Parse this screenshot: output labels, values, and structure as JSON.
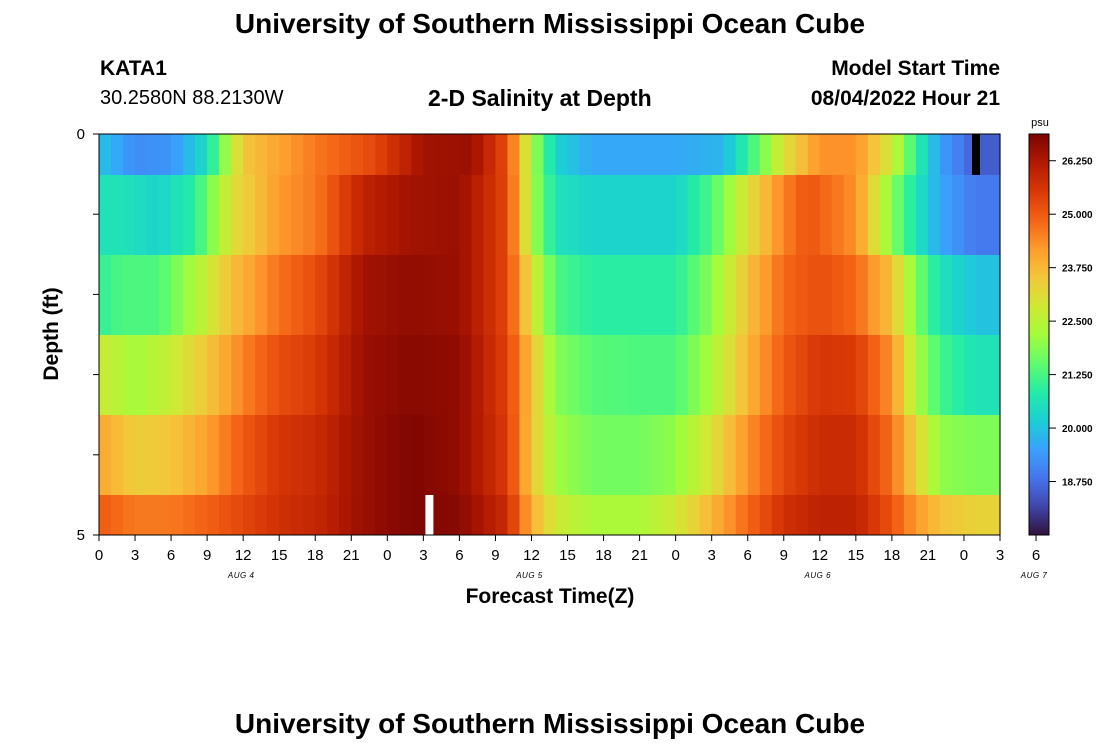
{
  "page": {
    "title_top": "University of Southern Mississippi Ocean Cube",
    "title_bottom": "University of Southern Mississippi Ocean Cube",
    "station_id": "KATA1",
    "station_coords": "30.2580N  88.2130W",
    "plot_title": "2-D Salinity at Depth",
    "model_start_label": "Model Start Time",
    "model_start_value": "08/04/2022 Hour 21"
  },
  "chart_data": {
    "type": "heatmap",
    "title": "2-D Salinity at Depth",
    "xlabel": "Forecast Time(Z)",
    "ylabel": "Depth (ft)",
    "x_hours": [
      0,
      75
    ],
    "x_tick_labels": [
      "0",
      "3",
      "6",
      "9",
      "12",
      "15",
      "18",
      "21",
      "0",
      "3",
      "6",
      "9",
      "12",
      "15",
      "18",
      "21",
      "0",
      "3",
      "6",
      "9",
      "12",
      "15",
      "18",
      "21",
      "0",
      "3",
      "6"
    ],
    "date_labels": [
      {
        "label": "AUG 4",
        "hour": 12
      },
      {
        "label": "AUG 5",
        "hour": 36
      },
      {
        "label": "AUG 6",
        "hour": 60
      },
      {
        "label": "AUG 7",
        "hour": 78
      }
    ],
    "y_tick_labels": [
      "0",
      "5"
    ],
    "ylim": [
      0,
      5
    ],
    "depth_levels": 5,
    "colorbar": {
      "unit": "psu",
      "min": 17.5,
      "max": 26.875,
      "tick_labels": [
        "26.250",
        "25.000",
        "23.750",
        "22.500",
        "21.250",
        "20.000",
        "18.750"
      ],
      "tick_values": [
        26.25,
        25.0,
        23.75,
        22.5,
        21.25,
        20.0,
        18.75
      ],
      "colors": [
        "#30123b",
        "#4145ab",
        "#4675ed",
        "#39a2fc",
        "#1bcfd4",
        "#24eca6",
        "#61fc6c",
        "#a4fc3b",
        "#d1e834",
        "#f3c63a",
        "#fe9b2d",
        "#f36315",
        "#d93806",
        "#b11901",
        "#7a0403"
      ]
    },
    "series": [
      {
        "name": "row 0 (surface)",
        "x_hours": [
          0,
          3,
          6,
          9,
          12,
          18,
          23,
          27,
          31,
          34,
          36,
          38,
          41,
          45,
          48,
          52,
          55,
          57,
          60,
          63,
          66,
          68,
          70,
          73,
          75
        ],
        "values": [
          20.0,
          19.2,
          19.3,
          20.5,
          23.5,
          24.6,
          25.3,
          26.4,
          26.5,
          25.2,
          22.3,
          20.3,
          19.6,
          19.6,
          19.6,
          19.8,
          21.6,
          23.0,
          24.3,
          24.3,
          22.8,
          21.0,
          19.5,
          18.5,
          18.5
        ]
      },
      {
        "name": "row 1",
        "x_hours": [
          0,
          2,
          5,
          8,
          11,
          15,
          18,
          22,
          26,
          30,
          34,
          36,
          38,
          41,
          45,
          48,
          51,
          54,
          57,
          59,
          63,
          65,
          67,
          70,
          73,
          75
        ],
        "values": [
          20.6,
          20.6,
          20.3,
          20.9,
          23.0,
          24.2,
          24.6,
          26.0,
          26.4,
          26.5,
          25.3,
          22.3,
          20.6,
          20.3,
          20.3,
          20.3,
          21.3,
          23.0,
          24.5,
          25.1,
          24.3,
          22.7,
          21.2,
          19.6,
          18.9,
          18.9
        ]
      },
      {
        "name": "row 2",
        "x_hours": [
          0,
          2,
          5,
          8,
          11,
          15,
          18,
          22,
          26,
          30,
          34,
          36,
          38,
          41,
          45,
          48,
          51,
          54,
          57,
          60,
          63,
          66,
          68,
          70,
          73,
          75
        ],
        "values": [
          21.0,
          21.3,
          21.3,
          22.3,
          23.6,
          24.7,
          25.2,
          26.4,
          26.6,
          26.5,
          25.3,
          23.0,
          21.3,
          20.9,
          20.9,
          20.9,
          21.9,
          23.6,
          24.8,
          25.2,
          24.8,
          23.6,
          21.8,
          20.6,
          20.0,
          20.0
        ]
      },
      {
        "name": "row 3",
        "x_hours": [
          0,
          3,
          6,
          9,
          12,
          15,
          18,
          22,
          26,
          30,
          34,
          36,
          38,
          41,
          45,
          48,
          51,
          54,
          57,
          60,
          63,
          66,
          68,
          70,
          73,
          75
        ],
        "values": [
          22.8,
          22.2,
          22.7,
          23.5,
          24.5,
          25.2,
          25.5,
          26.5,
          26.7,
          26.6,
          25.4,
          23.6,
          21.9,
          21.4,
          21.3,
          21.3,
          22.3,
          23.8,
          25.0,
          25.6,
          25.5,
          24.3,
          22.3,
          21.2,
          20.6,
          20.6
        ]
      },
      {
        "name": "row 4",
        "x_hours": [
          0,
          3,
          6,
          9,
          12,
          15,
          18,
          22,
          26,
          30,
          34,
          36,
          38,
          41,
          45,
          48,
          51,
          54,
          57,
          60,
          63,
          66,
          68,
          70,
          73,
          75
        ],
        "values": [
          24.0,
          23.4,
          23.5,
          24.1,
          25.0,
          25.6,
          25.8,
          26.5,
          26.8,
          26.6,
          25.5,
          23.5,
          22.2,
          21.7,
          21.7,
          22.0,
          23.0,
          24.3,
          25.3,
          25.8,
          25.8,
          24.7,
          23.3,
          22.0,
          21.8,
          21.8
        ]
      },
      {
        "name": "row 5 (bottom)",
        "x_hours": [
          0,
          3,
          6,
          9,
          12,
          15,
          18,
          22,
          26,
          30,
          34,
          36,
          38,
          41,
          45,
          48,
          51,
          54,
          57,
          60,
          63,
          66,
          68,
          70,
          73,
          75
        ],
        "values": [
          25.0,
          24.6,
          24.6,
          24.9,
          25.3,
          25.7,
          25.9,
          26.5,
          26.8,
          26.7,
          25.8,
          23.9,
          22.8,
          22.3,
          22.3,
          22.8,
          23.8,
          24.8,
          25.7,
          26.0,
          26.0,
          25.1,
          24.2,
          23.6,
          23.3,
          23.3
        ]
      }
    ],
    "missing_markers": [
      {
        "row": 0,
        "hour": 73.0,
        "color": "#000000"
      },
      {
        "row": 5,
        "hour": 27.5,
        "color": "#ffffff"
      }
    ]
  }
}
